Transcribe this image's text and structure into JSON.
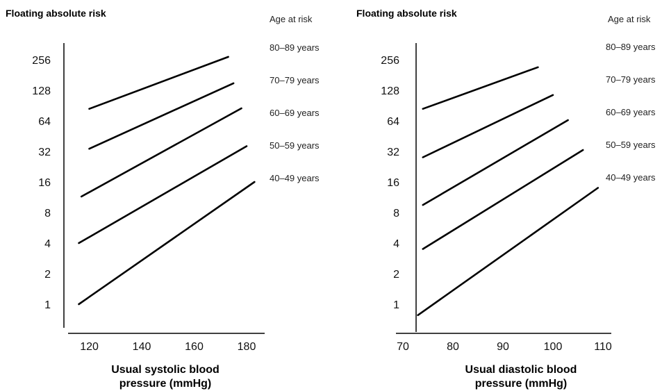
{
  "chart_data": [
    {
      "type": "line",
      "title": "Floating absolute risk",
      "xlabel": "Usual systolic blood pressure (mmHg)",
      "ylabel": "",
      "xlabel_lines": [
        "Usual systolic blood",
        "pressure (mmHg)"
      ],
      "y_scale": "log2",
      "y_ticks": [
        1,
        2,
        4,
        8,
        16,
        32,
        64,
        128,
        256
      ],
      "x_ticks": [
        120,
        140,
        160,
        180
      ],
      "xlim": [
        113,
        183
      ],
      "ylim": [
        0.55,
        400
      ],
      "legend_title": "Age at risk",
      "legend_position": "right",
      "series": [
        {
          "name": "80–89 years",
          "x": [
            120,
            173
          ],
          "y": [
            84,
            273
          ]
        },
        {
          "name": "70–79 years",
          "x": [
            120,
            175
          ],
          "y": [
            34,
            150
          ]
        },
        {
          "name": "60–69 years",
          "x": [
            117,
            178
          ],
          "y": [
            11.5,
            85
          ]
        },
        {
          "name": "50–59 years",
          "x": [
            116,
            180
          ],
          "y": [
            4.0,
            36
          ]
        },
        {
          "name": "40–49 years",
          "x": [
            116,
            183
          ],
          "y": [
            1.0,
            16
          ]
        }
      ]
    },
    {
      "type": "line",
      "title": "Floating absolute risk",
      "xlabel": "Usual diastolic blood pressure (mmHg)",
      "ylabel": "",
      "xlabel_lines": [
        "Usual diastolic blood",
        "pressure (mmHg)"
      ],
      "y_scale": "log2",
      "y_ticks": [
        1,
        2,
        4,
        8,
        16,
        32,
        64,
        128,
        256
      ],
      "x_ticks": [
        70,
        80,
        90,
        100,
        110
      ],
      "xlim": [
        68,
        110
      ],
      "ylim": [
        0.55,
        400
      ],
      "legend_title": "Age at risk",
      "legend_position": "right",
      "series": [
        {
          "name": "80–89 years",
          "x": [
            74,
            97
          ],
          "y": [
            84,
            216
          ]
        },
        {
          "name": "70–79 years",
          "x": [
            74,
            100
          ],
          "y": [
            28,
            115
          ]
        },
        {
          "name": "60–69 years",
          "x": [
            74,
            103
          ],
          "y": [
            9.5,
            65
          ]
        },
        {
          "name": "50–59 years",
          "x": [
            74,
            106
          ],
          "y": [
            3.5,
            33
          ]
        },
        {
          "name": "40–49 years",
          "x": [
            73,
            109
          ],
          "y": [
            0.78,
            14
          ]
        }
      ]
    }
  ]
}
